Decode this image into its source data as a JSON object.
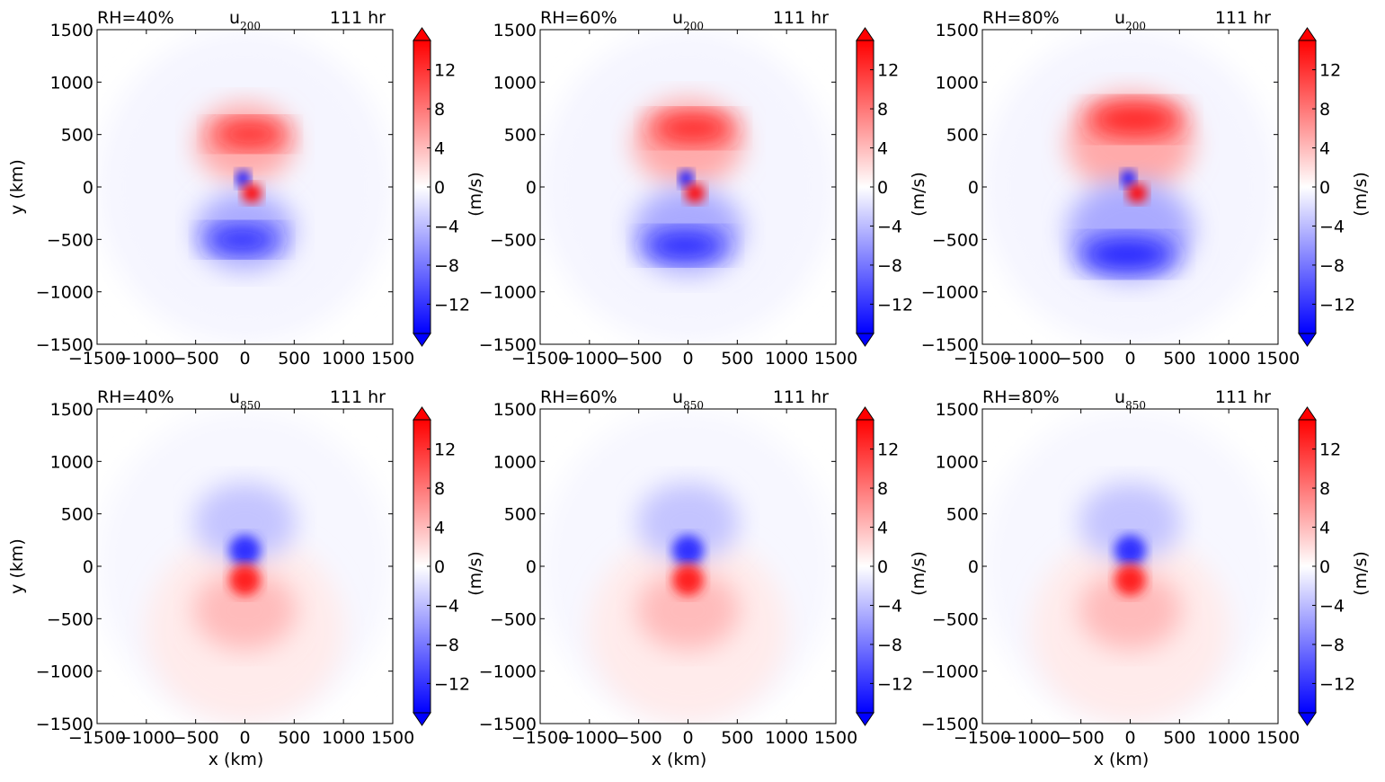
{
  "chart_data": {
    "type": "heatmap",
    "colormap": "bwr",
    "colors": {
      "negative": "#0000ff",
      "zero": "#ffffff",
      "positive": "#ff0000"
    },
    "colorbar": {
      "label": "(m/s)",
      "ticks": [
        "12",
        "8",
        "4",
        "0",
        "−4",
        "−8",
        "−12"
      ],
      "tick_values": [
        12,
        8,
        4,
        0,
        -4,
        -8,
        -12
      ],
      "range": [
        -15,
        15
      ],
      "extend": "both"
    },
    "xlim": [
      -1500,
      1500
    ],
    "ylim": [
      -1500,
      1500
    ],
    "x_ticks": [
      "−1500",
      "−1000",
      "−500",
      "0",
      "500",
      "1000",
      "1500"
    ],
    "y_ticks": [
      "1500",
      "1000",
      "500",
      "0",
      "−500",
      "−1000",
      "−1500"
    ],
    "xlabel": "x (km)",
    "ylabel": "y (km)",
    "time": "111 hr",
    "panels": [
      {
        "rh": "RH=40%",
        "var": "u",
        "level": "200",
        "time": "111 hr",
        "row": 0,
        "col": 0
      },
      {
        "rh": "RH=60%",
        "var": "u",
        "level": "200",
        "time": "111 hr",
        "row": 0,
        "col": 1
      },
      {
        "rh": "RH=80%",
        "var": "u",
        "level": "200",
        "time": "111 hr",
        "row": 0,
        "col": 2
      },
      {
        "rh": "RH=40%",
        "var": "u",
        "level": "850",
        "time": "111 hr",
        "row": 1,
        "col": 0
      },
      {
        "rh": "RH=60%",
        "var": "u",
        "level": "850",
        "time": "111 hr",
        "row": 1,
        "col": 1
      },
      {
        "rh": "RH=80%",
        "var": "u",
        "level": "850",
        "time": "111 hr",
        "row": 1,
        "col": 2
      }
    ]
  }
}
